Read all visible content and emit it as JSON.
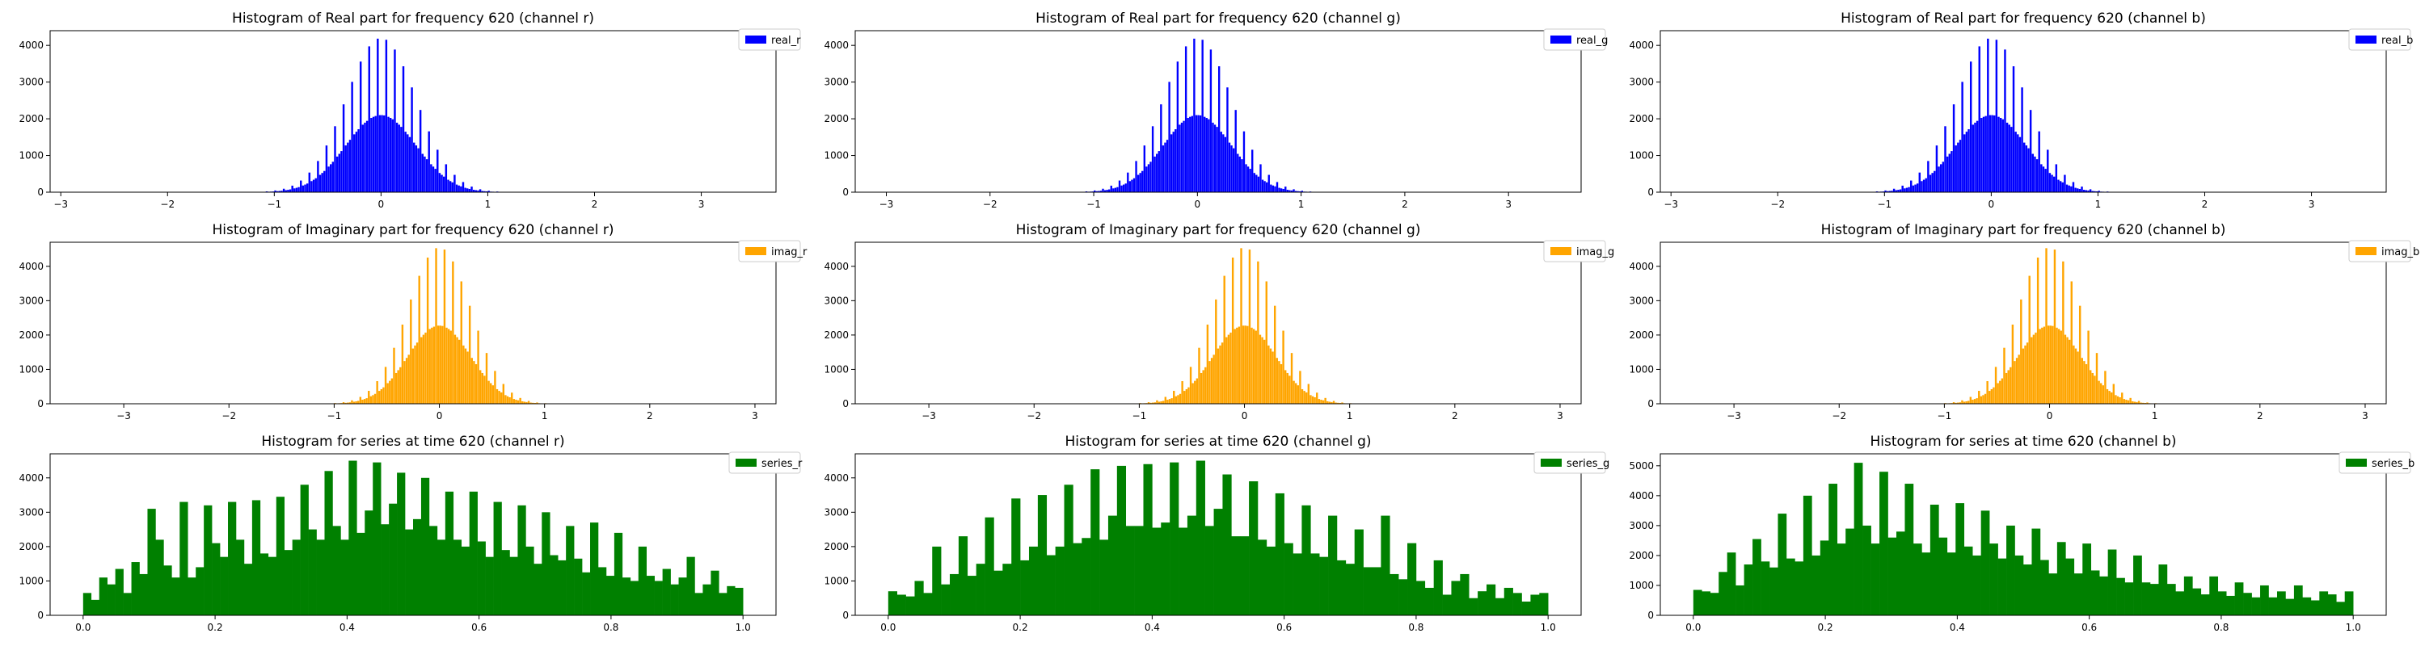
{
  "chart_data": [
    {
      "type": "bar",
      "title": "Histogram of Real part for frequency 620 (channel r)",
      "legend": "real_r",
      "color": "#0000ff",
      "kind": "gauss",
      "xlim": [
        -3.1,
        3.7
      ],
      "ylim": [
        0,
        4400
      ],
      "xticks": [
        -3,
        -2,
        -1,
        0,
        1,
        2,
        3
      ],
      "yticks": [
        0,
        1000,
        2000,
        3000,
        4000
      ],
      "sigma": 0.33,
      "peak": 4200,
      "legend_loc": "upper right"
    },
    {
      "type": "bar",
      "title": "Histogram of Real part for frequency 620 (channel g)",
      "legend": "real_g",
      "color": "#0000ff",
      "kind": "gauss",
      "xlim": [
        -3.3,
        3.7
      ],
      "ylim": [
        0,
        4400
      ],
      "xticks": [
        -3,
        -2,
        -1,
        0,
        1,
        2,
        3
      ],
      "yticks": [
        0,
        1000,
        2000,
        3000,
        4000
      ],
      "sigma": 0.33,
      "peak": 4200,
      "legend_loc": "upper right"
    },
    {
      "type": "bar",
      "title": "Histogram of Real part for frequency 620 (channel b)",
      "legend": "real_b",
      "color": "#0000ff",
      "kind": "gauss",
      "xlim": [
        -3.1,
        3.7
      ],
      "ylim": [
        0,
        4400
      ],
      "xticks": [
        -3,
        -2,
        -1,
        0,
        1,
        2,
        3
      ],
      "yticks": [
        0,
        1000,
        2000,
        3000,
        4000
      ],
      "sigma": 0.33,
      "peak": 4200,
      "legend_loc": "upper right"
    },
    {
      "type": "bar",
      "title": "Histogram of Imaginary part for frequency 620 (channel r)",
      "legend": "imag_r",
      "color": "#ffa500",
      "kind": "gauss",
      "xlim": [
        -3.7,
        3.2
      ],
      "ylim": [
        0,
        4700
      ],
      "xticks": [
        -3,
        -2,
        -1,
        0,
        1,
        2,
        3
      ],
      "yticks": [
        0,
        1000,
        2000,
        3000,
        4000
      ],
      "sigma": 0.3,
      "peak": 4550,
      "legend_loc": "upper right"
    },
    {
      "type": "bar",
      "title": "Histogram of Imaginary part for frequency 620 (channel g)",
      "legend": "imag_g",
      "color": "#ffa500",
      "kind": "gauss",
      "xlim": [
        -3.7,
        3.2
      ],
      "ylim": [
        0,
        4700
      ],
      "xticks": [
        -3,
        -2,
        -1,
        0,
        1,
        2,
        3
      ],
      "yticks": [
        0,
        1000,
        2000,
        3000,
        4000
      ],
      "sigma": 0.3,
      "peak": 4550,
      "legend_loc": "upper right"
    },
    {
      "type": "bar",
      "title": "Histogram of Imaginary part for frequency 620 (channel b)",
      "legend": "imag_b",
      "color": "#ffa500",
      "kind": "gauss",
      "xlim": [
        -3.7,
        3.2
      ],
      "ylim": [
        0,
        4700
      ],
      "xticks": [
        -3,
        -2,
        -1,
        0,
        1,
        2,
        3
      ],
      "yticks": [
        0,
        1000,
        2000,
        3000,
        4000
      ],
      "sigma": 0.3,
      "peak": 4550,
      "legend_loc": "upper right"
    },
    {
      "type": "bar",
      "title": "Histogram for series at time 620 (channel r)",
      "legend": "series_r",
      "color": "#008000",
      "kind": "bins",
      "xlim": [
        -0.05,
        1.05
      ],
      "ylim": [
        0,
        4700
      ],
      "xticks": [
        0.0,
        0.2,
        0.4,
        0.6,
        0.8,
        1.0
      ],
      "yticks": [
        0,
        1000,
        2000,
        3000,
        4000
      ],
      "bin_range": [
        0,
        1
      ],
      "legend_loc": "upper right",
      "values": [
        650,
        450,
        1100,
        900,
        1350,
        650,
        1550,
        1200,
        3100,
        2200,
        1450,
        1100,
        3300,
        1100,
        1400,
        3200,
        2100,
        1700,
        3300,
        2200,
        1500,
        3350,
        1800,
        1700,
        3450,
        1900,
        2200,
        3800,
        2500,
        2200,
        4200,
        2600,
        2200,
        4500,
        2400,
        3050,
        4450,
        2650,
        3250,
        4150,
        2500,
        2800,
        4000,
        2600,
        2200,
        3600,
        2200,
        2000,
        3600,
        2150,
        1700,
        3300,
        1900,
        1700,
        3200,
        2000,
        1500,
        3000,
        1750,
        1600,
        2600,
        1650,
        1250,
        2700,
        1400,
        1150,
        2400,
        1100,
        1000,
        2000,
        1150,
        1000,
        1350,
        900,
        1100,
        1700,
        650,
        900,
        1300,
        650,
        850,
        800
      ]
    },
    {
      "type": "bar",
      "title": "Histogram for series at time 620 (channel g)",
      "legend": "series_g",
      "color": "#008000",
      "kind": "bins",
      "xlim": [
        -0.05,
        1.05
      ],
      "ylim": [
        0,
        4700
      ],
      "xticks": [
        0.0,
        0.2,
        0.4,
        0.6,
        0.8,
        1.0
      ],
      "yticks": [
        0,
        1000,
        2000,
        3000,
        4000
      ],
      "bin_range": [
        0,
        1
      ],
      "legend_loc": "upper right",
      "values": [
        700,
        600,
        550,
        1000,
        650,
        2000,
        900,
        1200,
        2300,
        1150,
        1500,
        2850,
        1300,
        1500,
        3400,
        1600,
        2000,
        3500,
        1750,
        2000,
        3800,
        2100,
        2250,
        4250,
        2200,
        2900,
        4350,
        2600,
        2600,
        4400,
        2550,
        2700,
        4450,
        2550,
        2900,
        4500,
        2600,
        3100,
        4100,
        2300,
        2300,
        3900,
        2200,
        2000,
        3550,
        2100,
        1800,
        3200,
        1800,
        1700,
        2900,
        1600,
        1500,
        2500,
        1400,
        1400,
        2900,
        1200,
        1050,
        2100,
        1000,
        800,
        1600,
        600,
        1000,
        1200,
        500,
        700,
        900,
        500,
        800,
        650,
        400,
        600,
        650
      ]
    },
    {
      "type": "bar",
      "title": "Histogram for series at time 620 (channel b)",
      "legend": "series_b",
      "color": "#008000",
      "kind": "bins",
      "xlim": [
        -0.05,
        1.05
      ],
      "ylim": [
        0,
        5400
      ],
      "xticks": [
        0.0,
        0.2,
        0.4,
        0.6,
        0.8,
        1.0
      ],
      "yticks": [
        0,
        1000,
        2000,
        3000,
        4000,
        5000
      ],
      "bin_range": [
        0,
        1
      ],
      "legend_loc": "upper right",
      "values": [
        850,
        800,
        750,
        1450,
        2100,
        1000,
        1700,
        2550,
        1800,
        1600,
        3400,
        1900,
        1800,
        4000,
        2000,
        2500,
        4400,
        2400,
        2900,
        5100,
        3000,
        2400,
        4800,
        2600,
        2800,
        4400,
        2400,
        2100,
        3700,
        2600,
        2100,
        3750,
        2300,
        2000,
        3500,
        2400,
        1900,
        3000,
        2000,
        1700,
        2900,
        1850,
        1400,
        2450,
        1900,
        1400,
        2400,
        1500,
        1300,
        2200,
        1250,
        1100,
        2000,
        1100,
        1050,
        1700,
        1050,
        800,
        1300,
        900,
        700,
        1300,
        800,
        650,
        1100,
        750,
        600,
        1000,
        600,
        800,
        550,
        1000,
        600,
        500,
        800,
        700,
        450,
        800
      ]
    }
  ]
}
